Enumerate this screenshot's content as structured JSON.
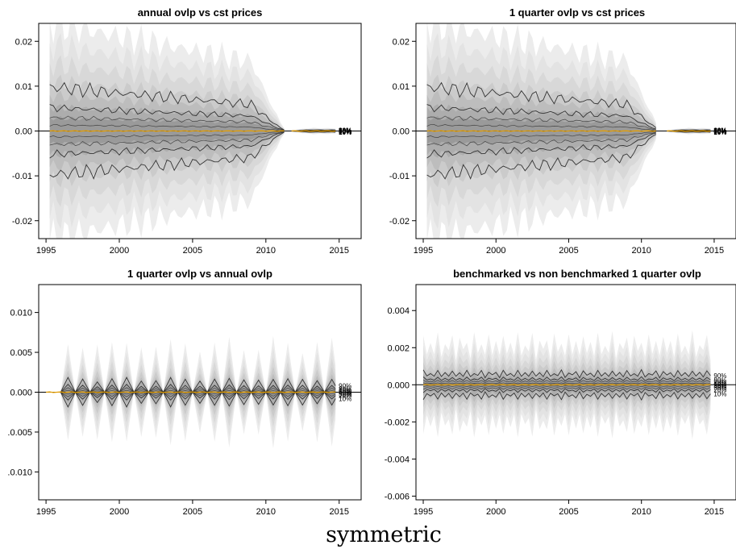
{
  "figure": {
    "caption": "symmetric"
  },
  "chart_data": [
    {
      "type": "area",
      "title": "annual ovlp vs cst prices",
      "xlabel": "",
      "ylabel": "",
      "x_ticks": [
        "1995",
        "2000",
        "2005",
        "2010",
        "2015"
      ],
      "y_ticks": [
        "-0.02",
        "-0.01",
        "0.00",
        "0.01",
        "0.02"
      ],
      "xlim": [
        1994.5,
        2016.5
      ],
      "ylim": [
        -0.024,
        0.024
      ],
      "grid": false,
      "x_start": 1995.25,
      "x_step": 0.25,
      "segments": [
        [
          1995.25,
          2011.25
        ],
        [
          2011.75,
          2014.75
        ]
      ],
      "shape": "widening-then-shrinking",
      "quantile_labels": [
        "90%",
        "80%",
        "70%",
        "60%",
        "50%",
        "40%",
        "30%",
        "20%",
        "10%"
      ],
      "quantiles_at_start": {
        "10%": -0.0098,
        "20%": -0.0052,
        "30%": -0.003,
        "40%": -0.0013,
        "50%": 0.0,
        "60%": 0.0013,
        "70%": 0.003,
        "80%": 0.0052,
        "90%": 0.0098
      },
      "quantiles_at_end": {
        "10%": -0.0043,
        "20%": -0.0026,
        "30%": -0.0016,
        "40%": -0.0007,
        "50%": 0.0,
        "60%": 0.0007,
        "70%": 0.0016,
        "80%": 0.0026,
        "90%": 0.0043
      },
      "outer_band_at_start": 0.024,
      "outer_band_at_end": 0.012,
      "median_color": "#e69f00"
    },
    {
      "type": "area",
      "title": "1 quarter ovlp vs cst prices",
      "xlabel": "",
      "ylabel": "",
      "x_ticks": [
        "1995",
        "2000",
        "2005",
        "2010",
        "2015"
      ],
      "y_ticks": [
        "-0.02",
        "-0.01",
        "0.00",
        "0.01",
        "0.02"
      ],
      "xlim": [
        1994.5,
        2016.5
      ],
      "ylim": [
        -0.024,
        0.024
      ],
      "grid": false,
      "x_start": 1995.25,
      "x_step": 0.25,
      "segments": [
        [
          1995.25,
          2011.0
        ],
        [
          2011.75,
          2014.75
        ]
      ],
      "shape": "widening-then-shrinking",
      "quantile_labels": [
        "90%",
        "80%",
        "70%",
        "60%",
        "50%",
        "40%",
        "30%",
        "20%",
        "10%"
      ],
      "quantiles_at_start": {
        "10%": -0.0098,
        "20%": -0.0052,
        "30%": -0.003,
        "40%": -0.0013,
        "50%": 0.0,
        "60%": 0.0013,
        "70%": 0.003,
        "80%": 0.0052,
        "90%": 0.0098
      },
      "quantiles_at_end": {
        "10%": -0.0043,
        "20%": -0.0026,
        "30%": -0.0016,
        "40%": -0.0007,
        "50%": 0.0,
        "60%": 0.0007,
        "70%": 0.0016,
        "80%": 0.0026,
        "90%": 0.0043
      },
      "outer_band_at_start": 0.024,
      "outer_band_at_end": 0.012,
      "median_color": "#e69f00"
    },
    {
      "type": "area",
      "title": "1 quarter ovlp vs annual ovlp",
      "xlabel": "",
      "ylabel": "",
      "x_ticks": [
        "1995",
        "2000",
        "2005",
        "2010",
        "2015"
      ],
      "y_ticks": [
        ".0.010",
        ".0.005",
        "0.000",
        "0.005",
        "0.010"
      ],
      "y_tick_values": [
        -0.01,
        -0.005,
        0.0,
        0.005,
        0.01
      ],
      "xlim": [
        1994.5,
        2016.5
      ],
      "ylim": [
        -0.0135,
        0.0135
      ],
      "grid": false,
      "x_start": 1995.0,
      "x_step": 0.25,
      "shape": "annual-diamonds",
      "peak_years": [
        1996,
        1997,
        1998,
        1999,
        2000,
        2001,
        2002,
        2003,
        2004,
        2005,
        2006,
        2007,
        2008,
        2009,
        2010,
        2011,
        2012,
        2013,
        2014
      ],
      "peak_outer_band": 0.006,
      "peak_quantiles": {
        "10%": -0.0016,
        "20%": -0.0009,
        "80%": 0.0009,
        "90%": 0.0016
      },
      "quantile_labels": [
        "90%",
        "80%",
        "70%",
        "60%",
        "50%",
        "40%",
        "30%",
        "20%",
        "10%"
      ],
      "median_color": "#e69f00"
    },
    {
      "type": "area",
      "title": "benchmarked vs non benchmarked 1 quarter ovlp",
      "xlabel": "",
      "ylabel": "",
      "x_ticks": [
        "1995",
        "2000",
        "2005",
        "2010",
        "2015"
      ],
      "y_ticks": [
        "-0.006",
        "-0.004",
        "-0.002",
        "0.000",
        "0.002",
        "0.004"
      ],
      "xlim": [
        1994.5,
        2016.5
      ],
      "ylim": [
        -0.0062,
        0.0054
      ],
      "grid": false,
      "x_start": 1995.0,
      "x_step": 0.25,
      "shape": "seasonal-oscillation",
      "outer_band_typical": 0.0025,
      "quantiles_typical": {
        "10%": -0.0007,
        "20%": -0.00045,
        "30%": -0.0002,
        "50%": 0.0,
        "70%": 0.0002,
        "80%": 0.00045,
        "90%": 0.0007
      },
      "quantile_labels": [
        "90%",
        "80%",
        "70%",
        "60%",
        "50%",
        "40%",
        "30%",
        "20%",
        "10%"
      ],
      "median_color": "#e69f00"
    }
  ]
}
